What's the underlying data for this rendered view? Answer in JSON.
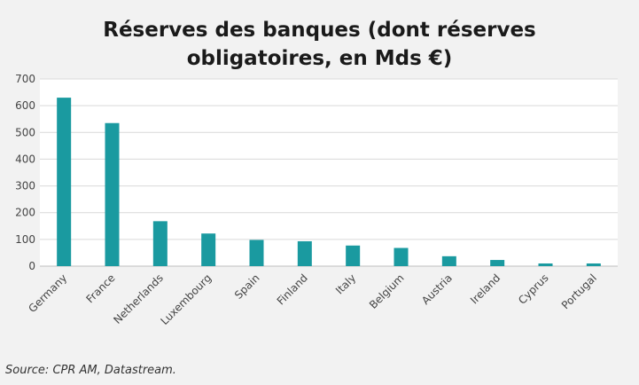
{
  "title_line1": "Réserves des banques (dont réserves",
  "title_line2": "obligatoires, en Mds €)",
  "source": "Source: CPR AM, Datastream.",
  "colors": {
    "bar": "#1a9aa0",
    "grid": "#d9d9d9",
    "axis": "#bfbfbf",
    "plot_bg": "#ffffff"
  },
  "chart_data": {
    "type": "bar",
    "title": "Réserves des banques (dont réserves obligatoires, en Mds €)",
    "categories": [
      "Germany",
      "France",
      "Netherlands",
      "Luxembourg",
      "Spain",
      "Finland",
      "Italy",
      "Belgium",
      "Austria",
      "Ireland",
      "Cyprus",
      "Portugal"
    ],
    "values": [
      630,
      535,
      168,
      122,
      98,
      93,
      77,
      68,
      37,
      23,
      10,
      10
    ],
    "ylim": [
      0,
      700
    ],
    "yticks": [
      0,
      100,
      200,
      300,
      400,
      500,
      600,
      700
    ],
    "grid": true,
    "legend": "none"
  }
}
